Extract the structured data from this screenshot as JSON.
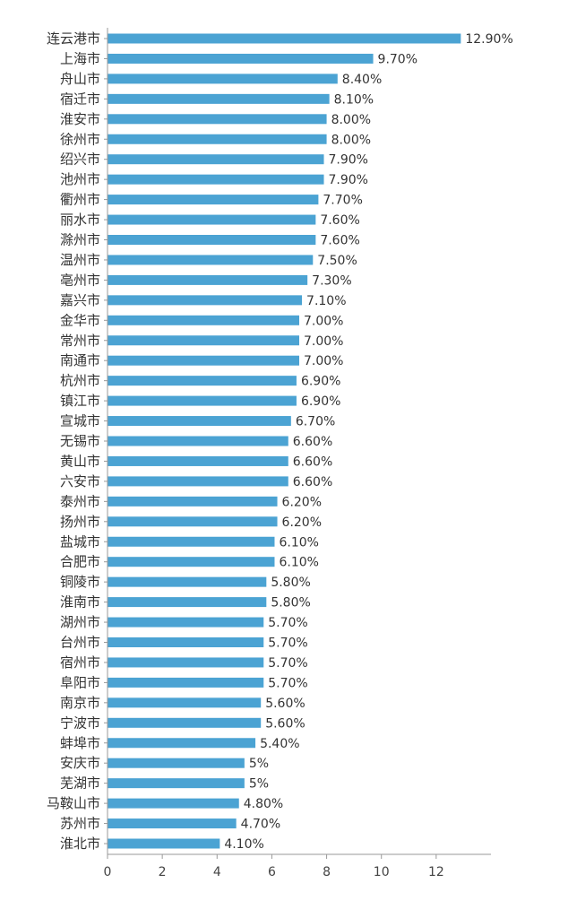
{
  "chart_data": {
    "type": "bar",
    "orientation": "horizontal",
    "title": "",
    "xlabel": "",
    "ylabel": "",
    "categories": [
      "连云港市",
      "上海市",
      "舟山市",
      "宿迁市",
      "淮安市",
      "徐州市",
      "绍兴市",
      "池州市",
      "衢州市",
      "丽水市",
      "滁州市",
      "温州市",
      "亳州市",
      "嘉兴市",
      "金华市",
      "常州市",
      "南通市",
      "杭州市",
      "镇江市",
      "宣城市",
      "无锡市",
      "黄山市",
      "六安市",
      "泰州市",
      "扬州市",
      "盐城市",
      "合肥市",
      "铜陵市",
      "淮南市",
      "湖州市",
      "台州市",
      "宿州市",
      "阜阳市",
      "南京市",
      "宁波市",
      "蚌埠市",
      "安庆市",
      "芜湖市",
      "马鞍山市",
      "苏州市",
      "淮北市"
    ],
    "values": [
      12.9,
      9.7,
      8.4,
      8.1,
      8.0,
      8.0,
      7.9,
      7.9,
      7.7,
      7.6,
      7.6,
      7.5,
      7.3,
      7.1,
      7.0,
      7.0,
      7.0,
      6.9,
      6.9,
      6.7,
      6.6,
      6.6,
      6.6,
      6.2,
      6.2,
      6.1,
      6.1,
      5.8,
      5.8,
      5.7,
      5.7,
      5.7,
      5.7,
      5.6,
      5.6,
      5.4,
      5.0,
      5.0,
      4.8,
      4.7,
      4.1
    ],
    "value_labels": [
      "12.90%",
      "9.70%",
      "8.40%",
      "8.10%",
      "8.00%",
      "8.00%",
      "7.90%",
      "7.90%",
      "7.70%",
      "7.60%",
      "7.60%",
      "7.50%",
      "7.30%",
      "7.10%",
      "7.00%",
      "7.00%",
      "7.00%",
      "6.90%",
      "6.90%",
      "6.70%",
      "6.60%",
      "6.60%",
      "6.60%",
      "6.20%",
      "6.20%",
      "6.10%",
      "6.10%",
      "5.80%",
      "5.80%",
      "5.70%",
      "5.70%",
      "5.70%",
      "5.70%",
      "5.60%",
      "5.60%",
      "5.40%",
      "5%",
      "5%",
      "4.80%",
      "4.70%",
      "4.10%"
    ],
    "xticks": [
      "0",
      "2",
      "4",
      "6",
      "8",
      "10",
      "12"
    ],
    "xlim": [
      0,
      14
    ],
    "grid": false,
    "legend": "none",
    "bar_color": "#4ba3d3",
    "axis_color": "#999999"
  }
}
